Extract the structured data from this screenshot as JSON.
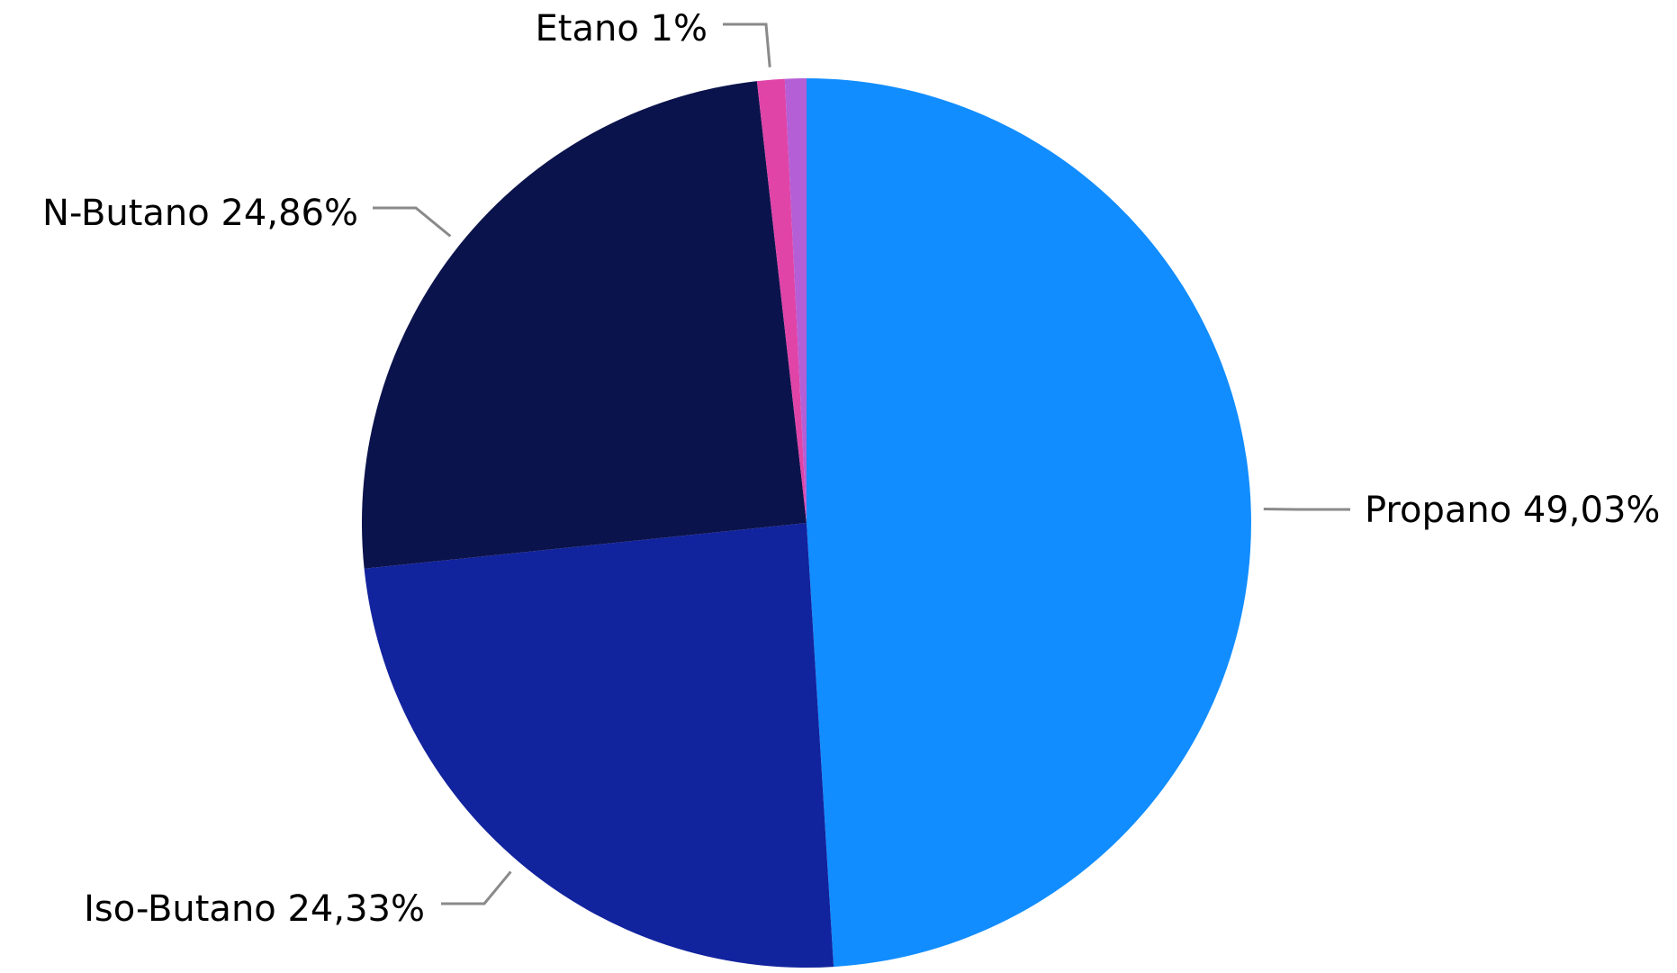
{
  "chart_data": {
    "type": "pie",
    "title": "",
    "slices": [
      {
        "label": "Propano",
        "value": 49.03,
        "value_label": "49,03%",
        "color": "#118DFF"
      },
      {
        "label": "Iso-Butano",
        "value": 24.33,
        "value_label": "24,33%",
        "color": "#12239E"
      },
      {
        "label": "N-Butano",
        "value": 24.86,
        "value_label": "24,86%",
        "color": "#0B134C"
      },
      {
        "label": "Etano",
        "value": 1,
        "value_label": "1%",
        "color": "#E044A7"
      },
      {
        "label": "",
        "value": 0.78,
        "value_label": "",
        "color": "#B45FD6"
      }
    ],
    "start_angle": "top (12 o'clock)",
    "direction": "clockwise",
    "legend": "none",
    "data_labels": "outside with leader lines"
  }
}
